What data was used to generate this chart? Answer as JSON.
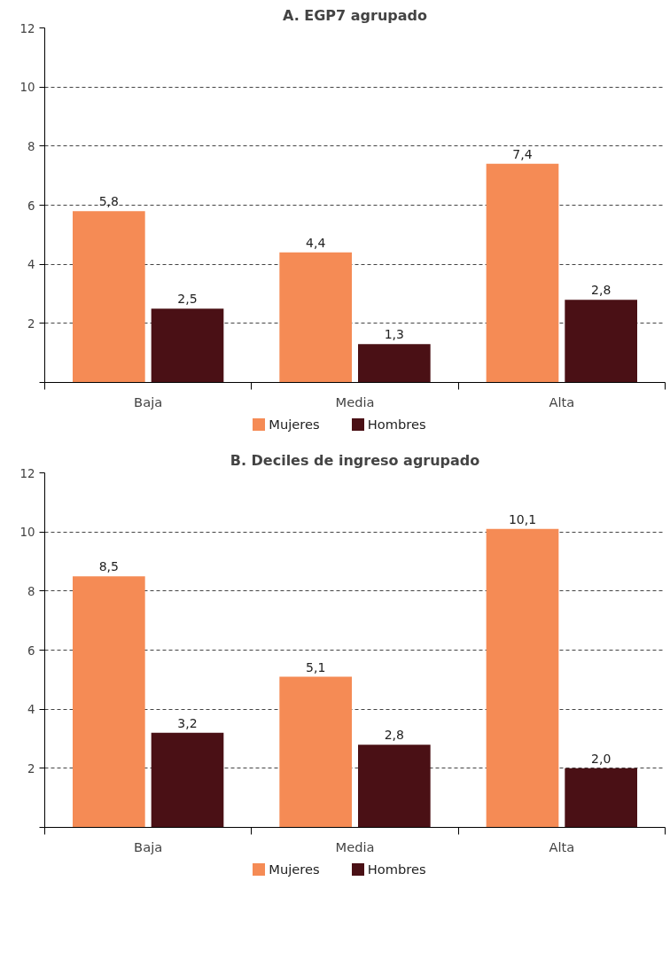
{
  "chart_data": [
    {
      "type": "bar",
      "title": "A. EGP7 agrupado",
      "categories": [
        "Baja",
        "Media",
        "Alta"
      ],
      "series": [
        {
          "name": "Mujeres",
          "color": "#f58b55",
          "values": [
            5.8,
            4.4,
            7.4
          ],
          "value_labels": [
            "5,8",
            "4,4",
            "7,4"
          ]
        },
        {
          "name": "Hombres",
          "color": "#4a1015",
          "values": [
            2.5,
            1.3,
            2.8
          ],
          "value_labels": [
            "2,5",
            "1,3",
            "2,8"
          ]
        }
      ],
      "ylim": [
        0,
        12
      ],
      "yticks": [
        {
          "value": 0,
          "label": null
        },
        2,
        4,
        6,
        8,
        10,
        12
      ],
      "grid": "y",
      "legend": "bottom"
    },
    {
      "type": "bar",
      "title": "B. Deciles de ingreso agrupado",
      "categories": [
        "Baja",
        "Media",
        "Alta"
      ],
      "series": [
        {
          "name": "Mujeres",
          "color": "#f58b55",
          "values": [
            8.5,
            5.1,
            10.1
          ],
          "value_labels": [
            "8,5",
            "5,1",
            "10,1"
          ]
        },
        {
          "name": "Hombres",
          "color": "#4a1015",
          "values": [
            3.2,
            2.8,
            2.0
          ],
          "value_labels": [
            "3,2",
            "2,8",
            "2,0"
          ]
        }
      ],
      "ylim": [
        0,
        12
      ],
      "yticks": [
        {
          "value": 0,
          "label": null
        },
        2,
        4,
        6,
        8,
        10,
        12
      ],
      "grid": "y",
      "legend": "bottom"
    }
  ]
}
